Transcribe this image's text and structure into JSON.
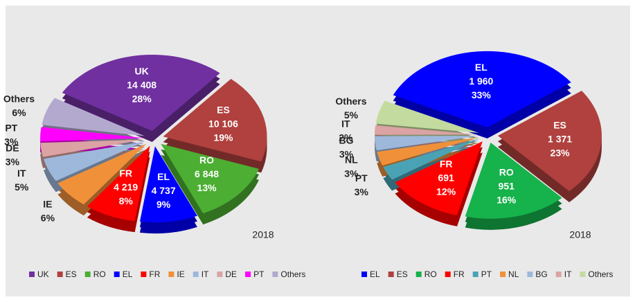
{
  "chart_data": [
    {
      "type": "pie",
      "annotation": "2018",
      "categories": [
        "UK",
        "ES",
        "RO",
        "EL",
        "FR",
        "IE",
        "IT",
        "DE",
        "PT",
        "Others"
      ],
      "values": [
        28,
        19,
        13,
        9,
        8,
        6,
        5,
        3,
        3,
        6
      ],
      "value_labels": [
        "28%",
        "19%",
        "13%",
        "9%",
        "8%",
        "6%",
        "5%",
        "3%",
        "3%",
        "6%"
      ],
      "counts": [
        14408,
        10106,
        6848,
        4737,
        4219,
        null,
        null,
        null,
        null,
        null
      ],
      "count_labels": [
        "14 408",
        "10 106",
        "6 848",
        "4 737",
        "4 219",
        null,
        null,
        null,
        null,
        null
      ],
      "colors": [
        "#7030a0",
        "#b0413e",
        "#4cae32",
        "#0000ff",
        "#ff0000",
        "#f0913a",
        "#9eb8dc",
        "#dba3a3",
        "#ff00ff",
        "#b3a9cf"
      ],
      "legend": "bottom"
    },
    {
      "type": "pie",
      "annotation": "2018",
      "categories": [
        "EL",
        "ES",
        "RO",
        "FR",
        "PT",
        "NL",
        "BG",
        "IT",
        "Others"
      ],
      "values": [
        33,
        23,
        16,
        12,
        3,
        3,
        3,
        2,
        5
      ],
      "value_labels": [
        "33%",
        "23%",
        "16%",
        "12%",
        "3%",
        "3%",
        "3%",
        "2%",
        "5%"
      ],
      "counts": [
        1960,
        1371,
        951,
        691,
        null,
        null,
        null,
        null,
        null
      ],
      "count_labels": [
        "1 960",
        "1 371",
        "951",
        "691",
        null,
        null,
        null,
        null,
        null
      ],
      "colors": [
        "#0000ff",
        "#b0413e",
        "#16b24b",
        "#ff0000",
        "#4aa3b5",
        "#f0913a",
        "#9eb8dc",
        "#dba3a3",
        "#c4dba0"
      ],
      "legend": "bottom"
    }
  ]
}
